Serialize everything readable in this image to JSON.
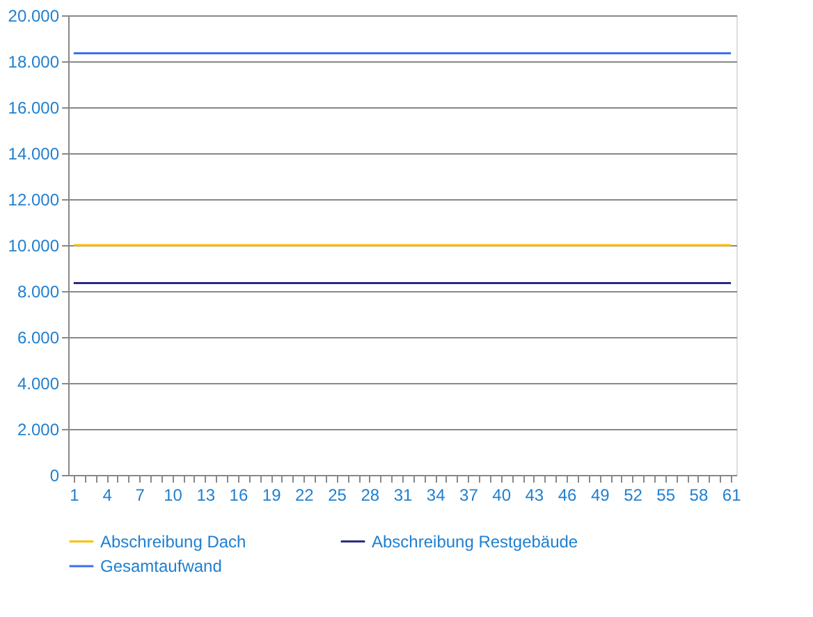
{
  "chart_data": {
    "type": "line",
    "categories": [
      "1",
      null,
      null,
      "4",
      null,
      null,
      "7",
      null,
      null,
      "10",
      null,
      null,
      "13",
      null,
      null,
      "16",
      null,
      null,
      "19",
      null,
      null,
      "22",
      null,
      null,
      "25",
      null,
      null,
      "28",
      null,
      null,
      "31",
      null,
      null,
      "34",
      null,
      null,
      "37",
      null,
      null,
      "40",
      null,
      null,
      "43",
      null,
      null,
      "46",
      null,
      null,
      "49",
      null,
      null,
      "52",
      null,
      null,
      "55",
      null,
      null,
      "58",
      null,
      null,
      "61"
    ],
    "series": [
      {
        "name": "Abschreibung  Dach",
        "color": "#ffc000",
        "values": [
          10000,
          10000,
          10000,
          10000,
          10000,
          10000,
          10000,
          10000,
          10000,
          10000,
          10000,
          10000,
          10000,
          10000,
          10000,
          10000,
          10000,
          10000,
          10000,
          10000,
          10000,
          10000,
          10000,
          10000,
          10000,
          10000,
          10000,
          10000,
          10000,
          10000,
          10000,
          10000,
          10000,
          10000,
          10000,
          10000,
          10000,
          10000,
          10000,
          10000,
          10000,
          10000,
          10000,
          10000,
          10000,
          10000,
          10000,
          10000,
          10000,
          10000,
          10000,
          10000,
          10000,
          10000,
          10000,
          10000,
          10000,
          10000,
          10000,
          10000,
          10000
        ]
      },
      {
        "name": "Abschreibung Restgebäude",
        "color": "#2b2b83",
        "values": [
          8350,
          8350,
          8350,
          8350,
          8350,
          8350,
          8350,
          8350,
          8350,
          8350,
          8350,
          8350,
          8350,
          8350,
          8350,
          8350,
          8350,
          8350,
          8350,
          8350,
          8350,
          8350,
          8350,
          8350,
          8350,
          8350,
          8350,
          8350,
          8350,
          8350,
          8350,
          8350,
          8350,
          8350,
          8350,
          8350,
          8350,
          8350,
          8350,
          8350,
          8350,
          8350,
          8350,
          8350,
          8350,
          8350,
          8350,
          8350,
          8350,
          8350,
          8350,
          8350,
          8350,
          8350,
          8350,
          8350,
          8350,
          8350,
          8350,
          8350,
          8350
        ]
      },
      {
        "name": "Gesamtaufwand",
        "color": "#3c6ff0",
        "values": [
          18350,
          18350,
          18350,
          18350,
          18350,
          18350,
          18350,
          18350,
          18350,
          18350,
          18350,
          18350,
          18350,
          18350,
          18350,
          18350,
          18350,
          18350,
          18350,
          18350,
          18350,
          18350,
          18350,
          18350,
          18350,
          18350,
          18350,
          18350,
          18350,
          18350,
          18350,
          18350,
          18350,
          18350,
          18350,
          18350,
          18350,
          18350,
          18350,
          18350,
          18350,
          18350,
          18350,
          18350,
          18350,
          18350,
          18350,
          18350,
          18350,
          18350,
          18350,
          18350,
          18350,
          18350,
          18350,
          18350,
          18350,
          18350,
          18350,
          18350,
          18350
        ]
      }
    ],
    "ylim": [
      0,
      20000
    ],
    "yticks": [
      0,
      {
        "value": 2000,
        "label": "2.000"
      },
      {
        "value": 4000,
        "label": "4.000"
      },
      {
        "value": 6000,
        "label": "6.000"
      },
      {
        "value": 8000,
        "label": "8.000"
      },
      {
        "value": 10000,
        "label": "10.000"
      },
      {
        "value": 12000,
        "label": "12.000"
      },
      {
        "value": 14000,
        "label": "14.000"
      },
      {
        "value": 16000,
        "label": "16.000"
      },
      {
        "value": 18000,
        "label": "18.000"
      },
      {
        "value": 20000,
        "label": "20.000"
      }
    ],
    "grid": "y",
    "legend": "bottom",
    "marker": "none",
    "line_style": "solid"
  }
}
